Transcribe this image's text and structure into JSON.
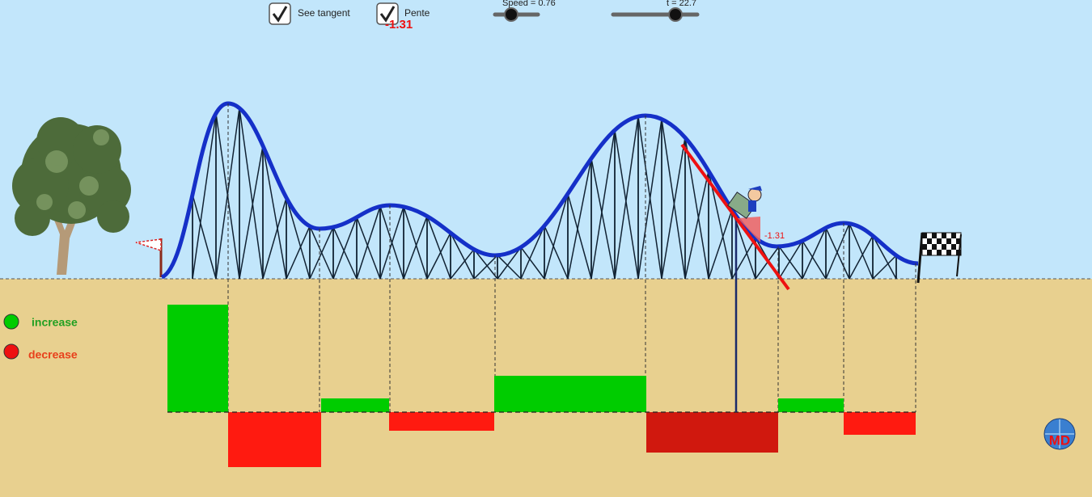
{
  "controls": {
    "see_tangent": {
      "label": "See tangent",
      "checked": true
    },
    "pente": {
      "label": "Pente",
      "checked": true,
      "readout": "-1.31"
    },
    "speed_slider": {
      "label": "Speed = 0.76"
    },
    "t_slider": {
      "label": "t = 22.7"
    }
  },
  "tangent_label": "-1.31",
  "legend": {
    "increase": "increase",
    "decrease": "decrease"
  },
  "logo": "MD"
}
